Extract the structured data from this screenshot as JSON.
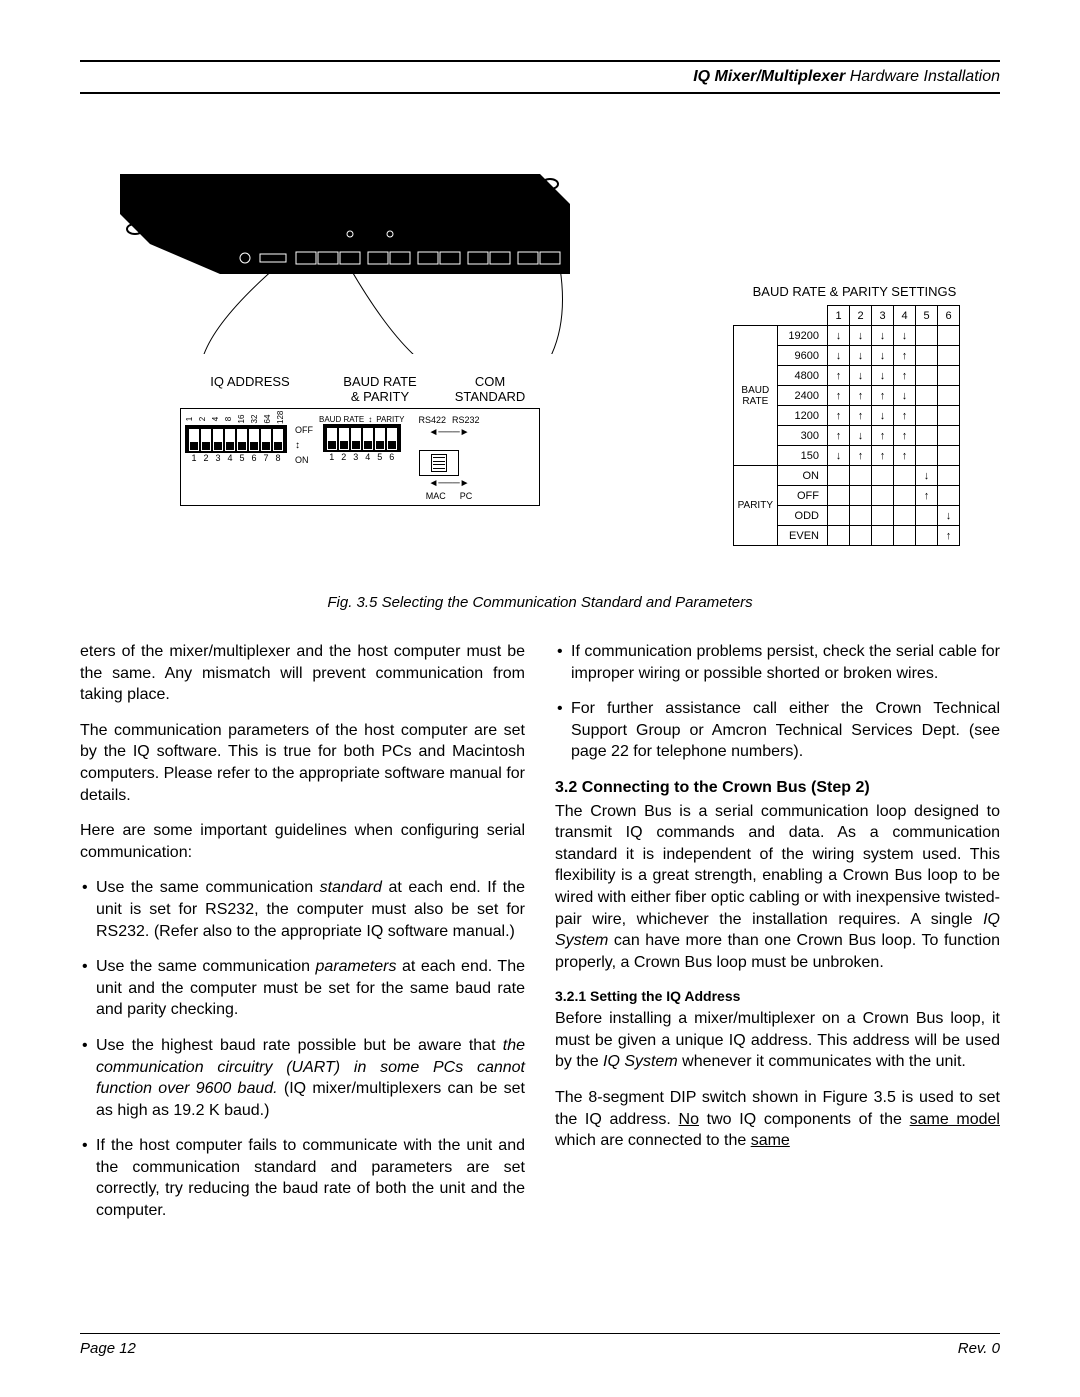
{
  "header": {
    "bold": "IQ Mixer/Multiplexer",
    "rest": "  Hardware Installation"
  },
  "panel": {
    "label_iq_address": "IQ ADDRESS",
    "label_baud_rate": "BAUD RATE",
    "label_parity": "& PARITY",
    "label_com": "COM",
    "label_standard": "STANDARD",
    "dip1_top": [
      "1",
      "2",
      "4",
      "8",
      "16",
      "32",
      "64",
      "128"
    ],
    "dip1_bot": [
      "1",
      "2",
      "3",
      "4",
      "5",
      "6",
      "7",
      "8"
    ],
    "off": "OFF",
    "on": "ON",
    "dip2_sub_baud": "BAUD RATE",
    "dip2_sub_parity": "PARITY",
    "dip2_bot": [
      "1",
      "2",
      "3",
      "4",
      "5",
      "6"
    ],
    "rs422": "RS422",
    "rs232": "RS232",
    "mac": "MAC",
    "pc": "PC"
  },
  "settings": {
    "title": "BAUD RATE & PARITY SETTINGS",
    "cols": [
      "1",
      "2",
      "3",
      "4",
      "5",
      "6"
    ],
    "baud_label": "BAUD\nRATE",
    "parity_label": "PARITY",
    "rates": [
      {
        "v": "19200",
        "a": [
          "↓",
          "↓",
          "↓",
          "↓",
          "",
          ""
        ]
      },
      {
        "v": "9600",
        "a": [
          "↓",
          "↓",
          "↓",
          "↑",
          "",
          ""
        ]
      },
      {
        "v": "4800",
        "a": [
          "↑",
          "↓",
          "↓",
          "↑",
          "",
          ""
        ]
      },
      {
        "v": "2400",
        "a": [
          "↑",
          "↑",
          "↑",
          "↓",
          "",
          ""
        ]
      },
      {
        "v": "1200",
        "a": [
          "↑",
          "↑",
          "↓",
          "↑",
          "",
          ""
        ]
      },
      {
        "v": "300",
        "a": [
          "↑",
          "↓",
          "↑",
          "↑",
          "",
          ""
        ]
      },
      {
        "v": "150",
        "a": [
          "↓",
          "↑",
          "↑",
          "↑",
          "",
          ""
        ]
      }
    ],
    "parity_rows": [
      {
        "v": "ON",
        "a": [
          "",
          "",
          "",
          "",
          "↓",
          ""
        ]
      },
      {
        "v": "OFF",
        "a": [
          "",
          "",
          "",
          "",
          "↑",
          ""
        ]
      },
      {
        "v": "ODD",
        "a": [
          "",
          "",
          "",
          "",
          "",
          "↓"
        ]
      },
      {
        "v": "EVEN",
        "a": [
          "",
          "",
          "",
          "",
          "",
          "↑"
        ]
      }
    ]
  },
  "figure_caption": "Fig. 3.5  Selecting the Communication Standard and Parameters",
  "col1": {
    "p1": "eters of the mixer/multiplexer and the host computer must be the same. Any mismatch will prevent communication from taking place.",
    "p2": "The communication parameters of the host computer are set by the IQ software. This is true for both PCs and Macintosh computers. Please refer to the appropriate software manual for details.",
    "p3": "Here are some important guidelines when configuring serial communication:",
    "li1a": "Use the same communication ",
    "li1b": "standard",
    "li1c": " at each end. If the unit is set for RS232, the computer must also be set for RS232. (Refer also to the appropriate IQ software manual.)",
    "li2a": "Use the same communication ",
    "li2b": "parameters",
    "li2c": " at each end. The unit and the computer must be set for the same baud rate and parity checking.",
    "li3a": "Use the highest baud rate possible but be aware that ",
    "li3b": "the communication circuitry (UART) in some PCs cannot function over 9600 baud.",
    "li3c": " (IQ mixer/multiplexers can be set as high as 19.2 K baud.)",
    "li4": "If the host computer fails to communicate with the unit and the communication standard and parameters are set correctly, try reducing the baud rate of both the unit and the computer."
  },
  "col2": {
    "li5": "If communication problems persist, check the serial cable for improper wiring or possible shorted or broken wires.",
    "li6": "For further assistance call either the Crown Technical Support Group or Amcron Technical Services Dept. (see page 22 for telephone numbers).",
    "sec_head": "3.2 Connecting to the Crown Bus (Step 2)",
    "sec_p1a": "The Crown Bus is a serial communication loop designed to transmit IQ commands and data. As a communication standard it is independent of the wiring system used. This flexibility is a great strength, enabling a Crown Bus loop to be wired with either fiber optic cabling or with inexpensive twisted-pair wire, whichever the installation requires. A single ",
    "sec_p1b": "IQ System",
    "sec_p1c": " can have more than one Crown Bus loop. To function properly, a Crown Bus loop must be unbroken.",
    "sub_head": "3.2.1 Setting the IQ Address",
    "sub_p1a": "Before installing a mixer/multiplexer on a Crown Bus loop, it must be given a unique IQ address. This address will be used by the ",
    "sub_p1b": "IQ System",
    "sub_p1c": " whenever it communicates with the unit.",
    "sub_p2a": "The 8-segment DIP switch shown in Figure 3.5 is used to set the IQ address. ",
    "sub_p2b": "No",
    "sub_p2c": " two IQ components of the ",
    "sub_p2d": "same model",
    "sub_p2e": " which are connected to the ",
    "sub_p2f": "same"
  },
  "footer": {
    "page": "Page 12",
    "rev": "Rev. 0"
  },
  "colors": {
    "text": "#000000",
    "bg": "#ffffff"
  }
}
